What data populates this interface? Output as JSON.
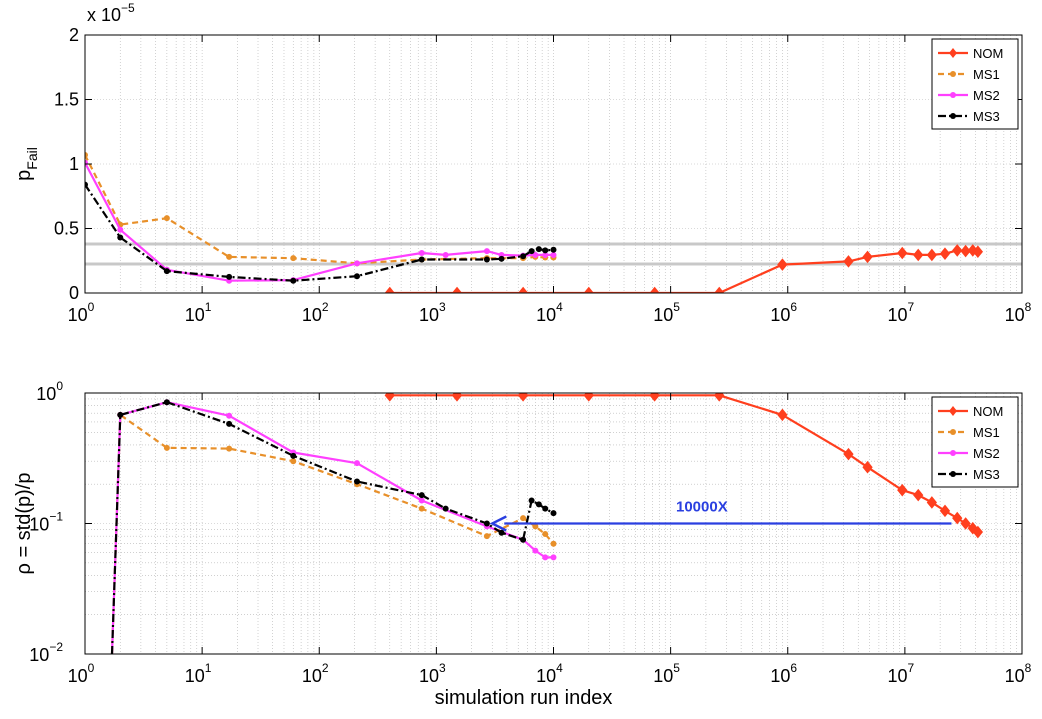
{
  "chart_data": [
    {
      "type": "line",
      "xscale": "log",
      "yscale": "linear",
      "xlim": [
        1,
        100000000
      ],
      "ylim": [
        0,
        2e-05
      ],
      "xticks": [
        1,
        10,
        100,
        1000,
        10000,
        100000,
        1000000,
        10000000,
        100000000
      ],
      "xtick_labels": [
        {
          "base": "10",
          "exp": "0"
        },
        {
          "base": "10",
          "exp": "1"
        },
        {
          "base": "10",
          "exp": "2"
        },
        {
          "base": "10",
          "exp": "3"
        },
        {
          "base": "10",
          "exp": "4"
        },
        {
          "base": "10",
          "exp": "5"
        },
        {
          "base": "10",
          "exp": "6"
        },
        {
          "base": "10",
          "exp": "7"
        },
        {
          "base": "10",
          "exp": "8"
        }
      ],
      "yticks": [
        0,
        5e-06,
        1e-05,
        1.5e-05,
        2e-05
      ],
      "ytick_labels": [
        "0",
        "0.5",
        "1",
        "1.5",
        "2"
      ],
      "y_multiplier": {
        "prefix": "x 10",
        "exp": "−5"
      },
      "ylabel": {
        "base": "p",
        "sub": "Fail"
      },
      "xlabel": "",
      "grid": true,
      "legend": "top-right",
      "reference_lines": [
        3.8e-06,
        2.25e-06
      ],
      "series": [
        {
          "name": "NOM",
          "color": "#ff3f1e",
          "dash": "solid",
          "marker": "diamond",
          "x": [
            400,
            1500,
            5500,
            20000,
            73000,
            260000,
            900000,
            3300000,
            4800000,
            9500000,
            13000000,
            17000000,
            22000000,
            28000000,
            33000000,
            38000000,
            42000000
          ],
          "y": [
            0,
            0,
            0,
            0,
            0,
            0,
            2.2e-06,
            2.45e-06,
            2.8e-06,
            3.1e-06,
            2.95e-06,
            2.95e-06,
            3.05e-06,
            3.3e-06,
            3.25e-06,
            3.3e-06,
            3.2e-06
          ]
        },
        {
          "name": "MS1",
          "color": "#e8902a",
          "dash": "dashed",
          "marker": "dot",
          "x": [
            1,
            2,
            5,
            17,
            60,
            210,
            750,
            2700,
            5500,
            7000,
            8500,
            10000
          ],
          "y": [
            1.07e-05,
            5.3e-06,
            5.8e-06,
            2.8e-06,
            2.7e-06,
            2.3e-06,
            2.6e-06,
            2.7e-06,
            2.7e-06,
            2.8e-06,
            2.75e-06,
            2.75e-06
          ]
        },
        {
          "name": "MS2",
          "color": "#ff40ff",
          "dash": "solid",
          "marker": "dot",
          "x": [
            1,
            2,
            5,
            17,
            60,
            210,
            750,
            1200,
            2700,
            3600,
            5500,
            7000,
            8500,
            10000
          ],
          "y": [
            1.01e-05,
            4.9e-06,
            1.8e-06,
            9.5e-07,
            1e-06,
            2.3e-06,
            3.1e-06,
            2.95e-06,
            3.25e-06,
            2.95e-06,
            2.9e-06,
            2.95e-06,
            2.95e-06,
            2.95e-06
          ]
        },
        {
          "name": "MS3",
          "color": "#000000",
          "dash": "dashdot",
          "marker": "dot",
          "x": [
            1,
            2,
            5,
            17,
            60,
            210,
            750,
            2700,
            3600,
            5500,
            6500,
            7500,
            8500,
            10000
          ],
          "y": [
            8.4e-06,
            4.3e-06,
            1.7e-06,
            1.25e-06,
            9.5e-07,
            1.3e-06,
            2.6e-06,
            2.6e-06,
            2.65e-06,
            2.85e-06,
            3.25e-06,
            3.4e-06,
            3.3e-06,
            3.35e-06
          ]
        }
      ]
    },
    {
      "type": "line",
      "xscale": "log",
      "yscale": "log",
      "xlim": [
        1,
        100000000
      ],
      "ylim": [
        0.01,
        1
      ],
      "xticks": [
        1,
        10,
        100,
        1000,
        10000,
        100000,
        1000000,
        10000000,
        100000000
      ],
      "xtick_labels": [
        {
          "base": "10",
          "exp": "0"
        },
        {
          "base": "10",
          "exp": "1"
        },
        {
          "base": "10",
          "exp": "2"
        },
        {
          "base": "10",
          "exp": "3"
        },
        {
          "base": "10",
          "exp": "4"
        },
        {
          "base": "10",
          "exp": "5"
        },
        {
          "base": "10",
          "exp": "6"
        },
        {
          "base": "10",
          "exp": "7"
        },
        {
          "base": "10",
          "exp": "8"
        }
      ],
      "yticks": [
        0.01,
        0.1,
        1
      ],
      "ytick_labels": [
        {
          "base": "10",
          "exp": "−2"
        },
        {
          "base": "10",
          "exp": "−1"
        },
        {
          "base": "10",
          "exp": "0"
        }
      ],
      "ylabel": "ρ = std(p)/p",
      "xlabel": "simulation run index",
      "grid": true,
      "legend": "top-right",
      "annotation": {
        "text": "10000X",
        "color": "#2a3fe0",
        "arrow_from_x": 25000000,
        "arrow_to_x": 3000,
        "arrow_y": 0.1
      },
      "series": [
        {
          "name": "NOM",
          "color": "#ff3f1e",
          "dash": "solid",
          "marker": "diamond",
          "x": [
            400,
            1500,
            5500,
            20000,
            73000,
            260000,
            900000,
            3300000,
            4800000,
            9500000,
            13000000,
            17000000,
            22000000,
            28000000,
            33000000,
            38000000,
            42000000
          ],
          "y": [
            0.96,
            0.96,
            0.96,
            0.96,
            0.96,
            0.96,
            0.68,
            0.34,
            0.27,
            0.18,
            0.165,
            0.145,
            0.125,
            0.11,
            0.1,
            0.092,
            0.086
          ]
        },
        {
          "name": "MS1",
          "color": "#e8902a",
          "dash": "dashed",
          "marker": "dot",
          "x": [
            1.7,
            2,
            5,
            17,
            60,
            210,
            750,
            2700,
            5500,
            7000,
            8500,
            10000
          ],
          "y": [
            0.01,
            0.68,
            0.38,
            0.375,
            0.3,
            0.2,
            0.13,
            0.08,
            0.11,
            0.095,
            0.083,
            0.07
          ]
        },
        {
          "name": "MS2",
          "color": "#ff40ff",
          "dash": "solid",
          "marker": "dot",
          "x": [
            1.7,
            2,
            5,
            17,
            60,
            210,
            750,
            2700,
            5500,
            7000,
            8500,
            10000
          ],
          "y": [
            0.01,
            0.68,
            0.85,
            0.67,
            0.35,
            0.29,
            0.15,
            0.095,
            0.075,
            0.062,
            0.055,
            0.055
          ]
        },
        {
          "name": "MS3",
          "color": "#000000",
          "dash": "dashdot",
          "marker": "dot",
          "x": [
            1.7,
            2,
            5,
            17,
            60,
            210,
            750,
            1200,
            2700,
            3600,
            5500,
            6500,
            7500,
            8500,
            10000
          ],
          "y": [
            0.01,
            0.68,
            0.85,
            0.58,
            0.33,
            0.21,
            0.165,
            0.13,
            0.1,
            0.085,
            0.075,
            0.15,
            0.14,
            0.13,
            0.12
          ]
        }
      ]
    }
  ]
}
